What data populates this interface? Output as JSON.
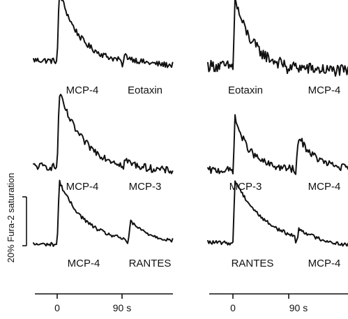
{
  "chart_data": {
    "type": "line",
    "ylabel": "20% Fura-2 saturation",
    "scale_bar": {
      "value": 20,
      "units": "% Fura-2 saturation"
    },
    "time_axis": {
      "ticks": [
        "0",
        "90 s"
      ]
    },
    "panels": [
      {
        "col": 0,
        "row": 0,
        "labels": [
          "MCP-4",
          "Eotaxin"
        ],
        "peak1": 19,
        "decay1": 9,
        "peak2": 1.5,
        "decay2": 6,
        "noise": 0.8
      },
      {
        "col": 1,
        "row": 0,
        "labels": [
          "Eotaxin",
          "MCP-4"
        ],
        "peak1": 18,
        "decay1": 8,
        "peak2": 0,
        "decay2": 6,
        "noise": 1.6
      },
      {
        "col": 0,
        "row": 1,
        "labels": [
          "MCP-4",
          "MCP-3"
        ],
        "peak1": 20,
        "decay1": 11,
        "peak2": 1.2,
        "decay2": 6,
        "noise": 1.0
      },
      {
        "col": 1,
        "row": 1,
        "labels": [
          "MCP-3",
          "MCP-4"
        ],
        "peak1": 14,
        "decay1": 7,
        "peak2": 9,
        "decay2": 8,
        "noise": 1.0
      },
      {
        "col": 0,
        "row": 2,
        "labels": [
          "MCP-4",
          "RANTES"
        ],
        "peak1": 17,
        "decay1": 12,
        "peak2": 5,
        "decay2": 10,
        "noise": 0.5
      },
      {
        "col": 1,
        "row": 2,
        "labels": [
          "RANTES",
          "MCP-4"
        ],
        "peak1": 17,
        "decay1": 14,
        "peak2": 2.5,
        "decay2": 10,
        "noise": 0.5
      }
    ]
  }
}
